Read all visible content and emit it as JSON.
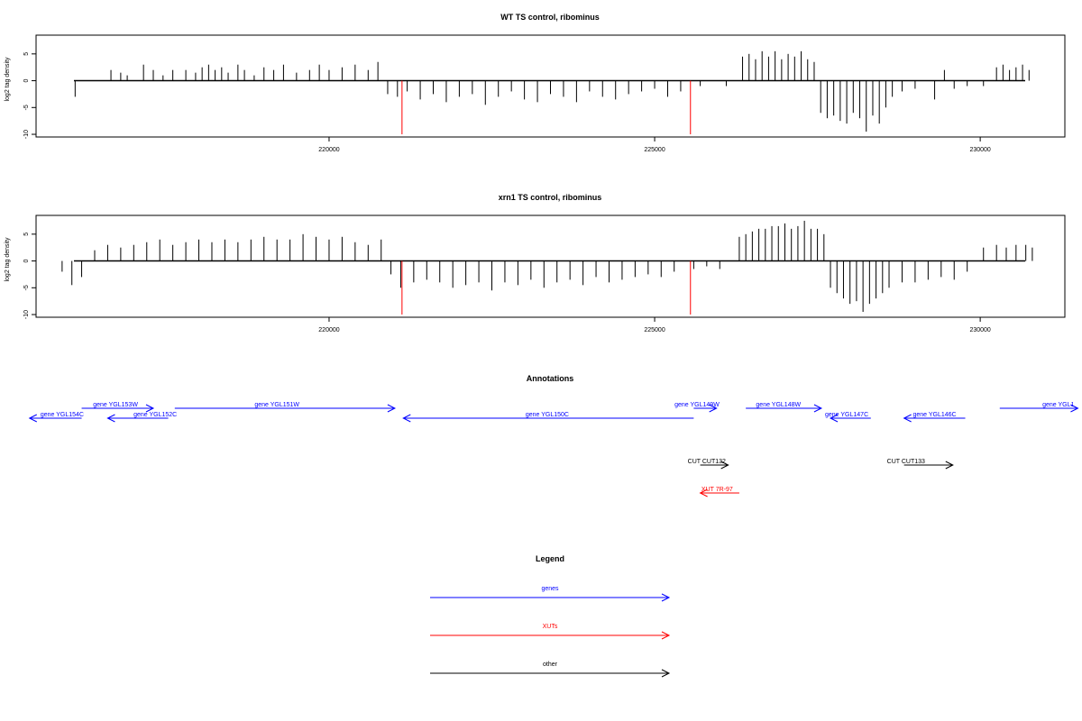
{
  "colors": {
    "genes": "#0000ff",
    "XUTs": "#ff0000",
    "other": "#000000",
    "marker": "#ff0000"
  },
  "chart_data": [
    {
      "type": "bar",
      "title": "WT TS control, ribominus",
      "ylabel": "log2 tag density",
      "xlim": [
        215500,
        231300
      ],
      "ylim": [
        -10.5,
        8.5
      ],
      "yticks": [
        -10,
        -5,
        0,
        5
      ],
      "xticks": [
        220000,
        225000,
        230000
      ],
      "vlines": [
        221120,
        225550
      ],
      "series": [
        {
          "color": "#000000",
          "x": [
            216100,
            216650,
            216800,
            216900,
            217150,
            217300,
            217450,
            217600,
            217800,
            217950,
            218050,
            218150,
            218250,
            218350,
            218450,
            218600,
            218700,
            218850,
            219000,
            219150,
            219300,
            219500,
            219700,
            219850,
            220000,
            220200,
            220400,
            220600,
            220750,
            220900,
            221050,
            221200,
            221400,
            221600,
            221800,
            222000,
            222200,
            222400,
            222600,
            222800,
            223000,
            223200,
            223400,
            223600,
            223800,
            224000,
            224200,
            224400,
            224600,
            224800,
            225000,
            225200,
            225400,
            225700,
            226100,
            226350,
            226450,
            226550,
            226650,
            226750,
            226850,
            226950,
            227050,
            227150,
            227250,
            227350,
            227450,
            227550,
            227650,
            227750,
            227850,
            227950,
            228050,
            228150,
            228250,
            228350,
            228450,
            228550,
            228650,
            228800,
            229000,
            229300,
            229450,
            229600,
            229800,
            230050,
            230250,
            230350,
            230450,
            230550,
            230650,
            230750
          ],
          "values": [
            -3,
            2,
            1.5,
            1,
            3,
            2,
            1,
            2,
            2,
            1.5,
            2.5,
            3,
            2,
            2.5,
            1.5,
            3,
            2,
            1,
            2.5,
            2,
            3,
            1.5,
            2,
            3,
            2,
            2.5,
            3,
            2,
            3.5,
            -2.5,
            -3,
            -2,
            -3.5,
            -2.5,
            -4,
            -3,
            -2.5,
            -4.5,
            -3,
            -2,
            -3.5,
            -4,
            -2.5,
            -3,
            -4,
            -2,
            -3,
            -3.5,
            -2.5,
            -2,
            -1.5,
            -3,
            -2,
            -1,
            -1,
            4.5,
            5,
            4,
            5.5,
            4.5,
            5.5,
            4,
            5,
            4.5,
            5.5,
            4,
            3.5,
            -6,
            -7,
            -6.5,
            -7.5,
            -8,
            -6,
            -7,
            -9.5,
            -6.5,
            -8,
            -5,
            -3,
            -2,
            -1.5,
            -3.5,
            2,
            -1.5,
            -1,
            -1,
            2.5,
            3,
            2,
            2.5,
            3,
            2
          ]
        }
      ]
    },
    {
      "type": "bar",
      "title": "xrn1 TS control, ribominus",
      "ylabel": "log2 tag density",
      "xlim": [
        215500,
        231300
      ],
      "ylim": [
        -10.5,
        8.5
      ],
      "yticks": [
        -10,
        -5,
        0,
        5
      ],
      "xticks": [
        220000,
        225000,
        230000
      ],
      "vlines": [
        221120,
        225550
      ],
      "series": [
        {
          "color": "#000000",
          "x": [
            215900,
            216050,
            216200,
            216400,
            216600,
            216800,
            217000,
            217200,
            217400,
            217600,
            217800,
            218000,
            218200,
            218400,
            218600,
            218800,
            219000,
            219200,
            219400,
            219600,
            219800,
            220000,
            220200,
            220400,
            220600,
            220800,
            220950,
            221100,
            221300,
            221500,
            221700,
            221900,
            222100,
            222300,
            222500,
            222700,
            222900,
            223100,
            223300,
            223500,
            223700,
            223900,
            224100,
            224300,
            224500,
            224700,
            224900,
            225100,
            225300,
            225600,
            225800,
            226000,
            226300,
            226400,
            226500,
            226600,
            226700,
            226800,
            226900,
            227000,
            227100,
            227200,
            227300,
            227400,
            227500,
            227600,
            227700,
            227800,
            227900,
            228000,
            228100,
            228200,
            228300,
            228400,
            228500,
            228600,
            228800,
            229000,
            229200,
            229400,
            229600,
            229800,
            230050,
            230250,
            230400,
            230550,
            230700,
            230800
          ],
          "values": [
            -2,
            -4.5,
            -3,
            2,
            3,
            2.5,
            3,
            3.5,
            4,
            3,
            3.5,
            4,
            3.5,
            4,
            3.5,
            4,
            4.5,
            4,
            4,
            5,
            4.5,
            4,
            4.5,
            3.5,
            3,
            4,
            -2.5,
            -5,
            -4,
            -3.5,
            -4,
            -5,
            -4.5,
            -4,
            -5.5,
            -4,
            -4.5,
            -3.5,
            -5,
            -4,
            -3.5,
            -4.5,
            -3,
            -4,
            -3.5,
            -3,
            -2.5,
            -3,
            -2,
            -1.5,
            -1,
            -1.5,
            4.5,
            5,
            5.5,
            6,
            6,
            6.5,
            6.5,
            7,
            6,
            6.5,
            7.5,
            6,
            6,
            5,
            -5,
            -6,
            -7,
            -8,
            -7.5,
            -9.5,
            -8,
            -7,
            -6,
            -5,
            -4,
            -4,
            -3.5,
            -3,
            -3.5,
            -2,
            2.5,
            3,
            2.5,
            3,
            3,
            2.5
          ]
        }
      ]
    }
  ],
  "annotations": {
    "title": "Annotations",
    "genes": [
      {
        "label": "gene YGL154C",
        "start": 215400,
        "end": 216200,
        "strand": "-",
        "row": 0,
        "label_x": 215900
      },
      {
        "label": "gene YGL153W",
        "start": 216200,
        "end": 217300,
        "strand": "+",
        "row": 1,
        "label_x": 216720
      },
      {
        "label": "gene YGL152C",
        "start": 216600,
        "end": 217530,
        "strand": "-",
        "row": 0,
        "label_x": 217330
      },
      {
        "label": "gene YGL151W",
        "start": 217630,
        "end": 221010,
        "strand": "+",
        "row": 1,
        "label_x": 219200
      },
      {
        "label": "gene YGL150C",
        "start": 221140,
        "end": 225600,
        "strand": "-",
        "row": 0,
        "label_x": 223350
      },
      {
        "label": "gene YGL149W",
        "start": 225600,
        "end": 225950,
        "strand": "+",
        "row": 1,
        "label_x": 225650
      },
      {
        "label": "gene YGL148W",
        "start": 226400,
        "end": 227560,
        "strand": "+",
        "row": 1,
        "label_x": 226900
      },
      {
        "label": "gene YGL147C",
        "start": 227700,
        "end": 228320,
        "strand": "-",
        "row": 0,
        "label_x": 227950
      },
      {
        "label": "gene YGL146C",
        "start": 228830,
        "end": 229770,
        "strand": "-",
        "row": 0,
        "label_x": 229300
      },
      {
        "label": "gene YGL1",
        "start": 230300,
        "end": 231500,
        "strand": "+",
        "row": 1,
        "label_x": 231200
      }
    ],
    "others": [
      {
        "label": "CUT CUT132",
        "start": 225700,
        "end": 226130,
        "strand": "+",
        "label_x": 225800
      },
      {
        "label": "CUT CUT133",
        "start": 228830,
        "end": 229580,
        "strand": "+",
        "label_x": 228860
      }
    ],
    "xuts": [
      {
        "label": "XUT 7R-97",
        "start": 225700,
        "end": 226300,
        "strand": "-",
        "label_x": 225960
      }
    ]
  },
  "legend": {
    "title": "Legend",
    "items": [
      {
        "label": "genes",
        "color": "#0000ff"
      },
      {
        "label": "XUTs",
        "color": "#ff0000"
      },
      {
        "label": "other",
        "color": "#000000"
      }
    ]
  }
}
